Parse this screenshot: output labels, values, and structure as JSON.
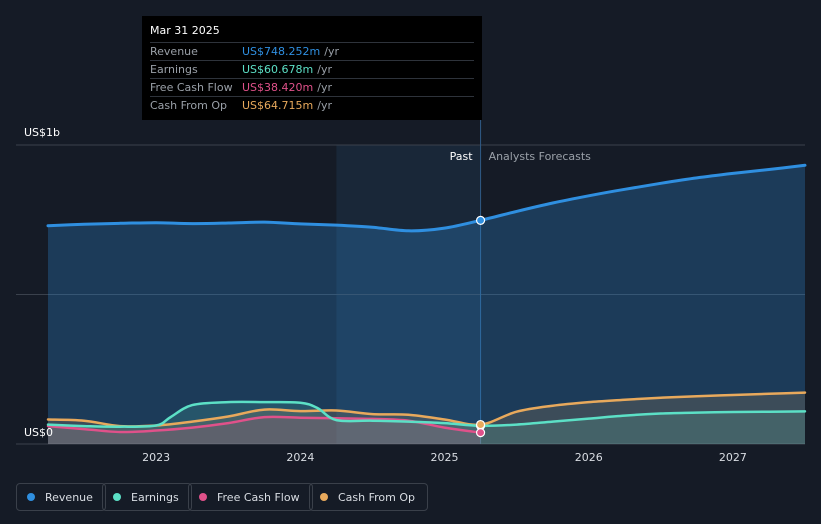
{
  "tooltip": {
    "date": "Mar 31 2025",
    "rows": [
      {
        "label": "Revenue",
        "value": "US$748.252m",
        "unit": "/yr",
        "color": "#2f8fe0"
      },
      {
        "label": "Earnings",
        "value": "US$60.678m",
        "unit": "/yr",
        "color": "#5ce0c6"
      },
      {
        "label": "Free Cash Flow",
        "value": "US$38.420m",
        "unit": "/yr",
        "color": "#e0518a"
      },
      {
        "label": "Cash From Op",
        "value": "US$64.715m",
        "unit": "/yr",
        "color": "#e8a95c"
      }
    ]
  },
  "chart_data": {
    "type": "line",
    "y_axis_labels": [
      "US$1b",
      "US$0"
    ],
    "ylim": [
      0,
      1000
    ],
    "ylim_units": "US$m",
    "x_tick_labels": [
      "2023",
      "2024",
      "2025",
      "2026",
      "2027"
    ],
    "x_ticks": [
      2023,
      2024,
      2025,
      2026,
      2027
    ],
    "xlim": [
      2022.25,
      2027.5
    ],
    "past_label": "Past",
    "forecast_label": "Analysts Forecasts",
    "past_end": 2025.25,
    "highlight_start": 2024.25,
    "grid": true,
    "legend_position": "bottom",
    "series": [
      {
        "name": "Revenue",
        "color": "#2f8fe0",
        "points": [
          [
            2022.25,
            730
          ],
          [
            2022.5,
            735
          ],
          [
            2022.75,
            738
          ],
          [
            2023,
            740
          ],
          [
            2023.25,
            737
          ],
          [
            2023.5,
            739
          ],
          [
            2023.75,
            742
          ],
          [
            2024,
            736
          ],
          [
            2024.25,
            732
          ],
          [
            2024.5,
            725
          ],
          [
            2024.75,
            713
          ],
          [
            2025,
            722
          ],
          [
            2025.25,
            748
          ],
          [
            2025.5,
            778
          ],
          [
            2025.75,
            806
          ],
          [
            2026,
            830
          ],
          [
            2026.25,
            852
          ],
          [
            2026.5,
            872
          ],
          [
            2026.75,
            890
          ],
          [
            2027,
            905
          ],
          [
            2027.25,
            918
          ],
          [
            2027.5,
            932
          ]
        ]
      },
      {
        "name": "Earnings",
        "color": "#5ce0c6",
        "points": [
          [
            2022.25,
            65
          ],
          [
            2022.5,
            60
          ],
          [
            2022.75,
            58
          ],
          [
            2023,
            62
          ],
          [
            2023.1,
            90
          ],
          [
            2023.25,
            130
          ],
          [
            2023.5,
            140
          ],
          [
            2023.75,
            140
          ],
          [
            2024,
            138
          ],
          [
            2024.12,
            120
          ],
          [
            2024.25,
            80
          ],
          [
            2024.5,
            78
          ],
          [
            2024.75,
            75
          ],
          [
            2025,
            70
          ],
          [
            2025.25,
            61
          ],
          [
            2025.5,
            65
          ],
          [
            2025.75,
            75
          ],
          [
            2026,
            85
          ],
          [
            2026.25,
            95
          ],
          [
            2026.5,
            102
          ],
          [
            2026.75,
            105
          ],
          [
            2027,
            107
          ],
          [
            2027.25,
            108
          ],
          [
            2027.5,
            109
          ]
        ]
      },
      {
        "name": "Free Cash Flow",
        "color": "#e0518a",
        "points": [
          [
            2022.25,
            60
          ],
          [
            2022.5,
            50
          ],
          [
            2022.75,
            40
          ],
          [
            2023,
            45
          ],
          [
            2023.25,
            55
          ],
          [
            2023.5,
            70
          ],
          [
            2023.75,
            90
          ],
          [
            2024,
            88
          ],
          [
            2024.25,
            86
          ],
          [
            2024.5,
            84
          ],
          [
            2024.75,
            78
          ],
          [
            2025,
            55
          ],
          [
            2025.25,
            38
          ]
        ]
      },
      {
        "name": "Cash From Op",
        "color": "#e8a95c",
        "points": [
          [
            2022.25,
            82
          ],
          [
            2022.5,
            78
          ],
          [
            2022.75,
            60
          ],
          [
            2023,
            62
          ],
          [
            2023.25,
            75
          ],
          [
            2023.5,
            92
          ],
          [
            2023.75,
            115
          ],
          [
            2024,
            110
          ],
          [
            2024.25,
            112
          ],
          [
            2024.5,
            100
          ],
          [
            2024.75,
            98
          ],
          [
            2025,
            82
          ],
          [
            2025.25,
            65
          ],
          [
            2025.5,
            108
          ],
          [
            2025.75,
            128
          ],
          [
            2026,
            140
          ],
          [
            2026.25,
            148
          ],
          [
            2026.5,
            155
          ],
          [
            2026.75,
            160
          ],
          [
            2027,
            164
          ],
          [
            2027.25,
            168
          ],
          [
            2027.5,
            172
          ]
        ]
      }
    ]
  }
}
